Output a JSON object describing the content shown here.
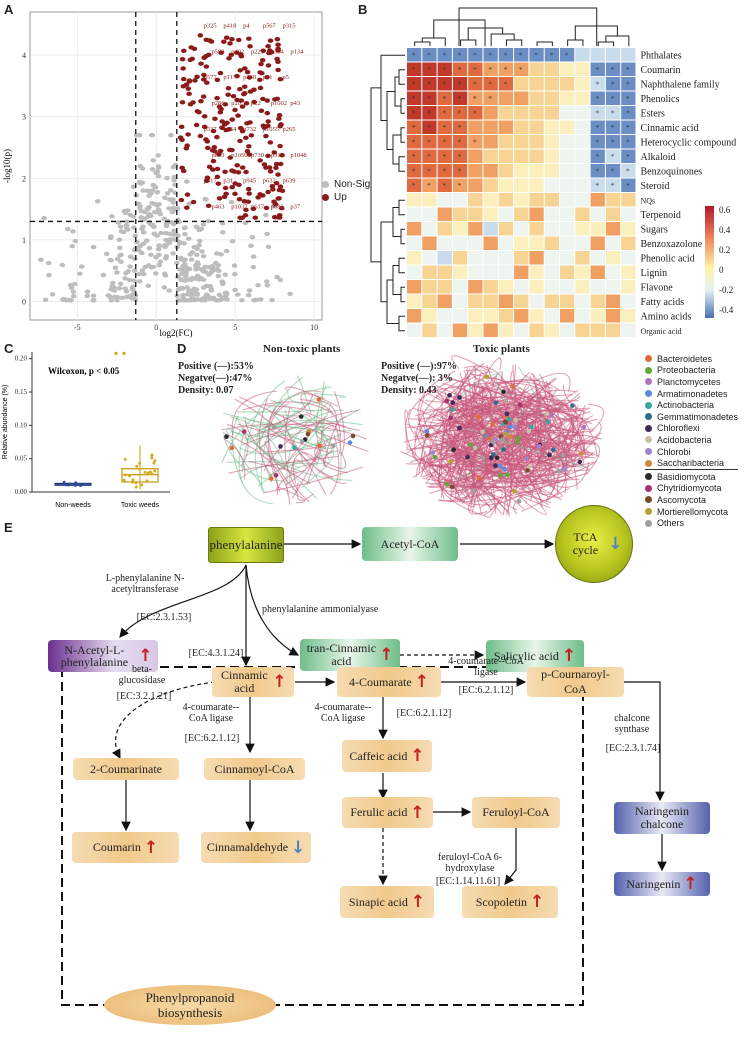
{
  "panels": {
    "A": "A",
    "B": "B",
    "C": "C",
    "D": "D",
    "E": "E"
  },
  "volcano": {
    "xlabel": "log2(FC)",
    "ylabel": "-log10(p)",
    "xticks": [
      "-5",
      "0",
      "5",
      "10"
    ],
    "yticks": [
      "0",
      "1",
      "2",
      "3",
      "4"
    ],
    "legend": [
      {
        "label": "Non-Sig",
        "color": "#bdbdbd"
      },
      {
        "label": "Up",
        "color": "#8b1a1a"
      }
    ],
    "point_labels": [
      "p325",
      "p418",
      "p4",
      "p567",
      "p315",
      "p598",
      "p402",
      "p221",
      "p334",
      "p134",
      "p577",
      "p117",
      "p348",
      "p61",
      "p5",
      "p286",
      "p20",
      "p22",
      "p1002",
      "p43",
      "p537",
      "p654",
      "p732",
      "p1055",
      "p265",
      "p833",
      "p1050",
      "p730",
      "p315",
      "p1048",
      "p317",
      "p31",
      "p945",
      "p632",
      "p639",
      "p463",
      "p1037",
      "p617",
      "p683",
      "p37"
    ],
    "thresholds": {
      "fc_low": -1.3,
      "fc_high": 1.3,
      "p": 1.3
    }
  },
  "heatmap": {
    "rows": [
      "Phthalates",
      "Coumarin",
      "Naphthalene family",
      "Phenolics",
      "Esters",
      "Cinnamic acid",
      "Heterocyclic compound",
      "Alkaloid",
      "Benzoquinones",
      "Steroid",
      "NQs",
      "Terpenoid",
      "Sugars",
      "Benzoxazolone",
      "Phenolic acid",
      "Lignin",
      "Flavone",
      "Fatty acids",
      "Amino acids",
      "Organic acid"
    ],
    "cols": [
      "ME3",
      "ME12",
      "ME5",
      "ME4",
      "ME9",
      "ME8",
      "ME7",
      "ME15",
      "ME6",
      "ME13",
      "ME10",
      "ME14",
      "ME2",
      "ME1",
      "ME11"
    ],
    "scale_ticks": [
      "0.6",
      "0.4",
      "0.2",
      "0",
      "-0.2",
      "-0.4"
    ]
  },
  "boxplot": {
    "annotation": "Wilcoxon, p < 0.05",
    "ylabel": "Relative abundance (%)",
    "yticks": [
      "0.00",
      "0.05",
      "0.10",
      "0.15",
      "0.20"
    ],
    "groups": [
      "Non-weeds",
      "Toxic weeds"
    ]
  },
  "networks": {
    "left": {
      "title": "Non-toxic plants",
      "positive": "Positive (—):53%",
      "negative": "Negatve(—):47%",
      "density": "Density: 0.07"
    },
    "right": {
      "title": "Toxic plants",
      "positive": "Positive (—):97%",
      "negative": "Negatve(—): 3%",
      "density": "Density: 0.43"
    },
    "legend": [
      {
        "label": "Bacteroidetes",
        "color": "#e06a3a"
      },
      {
        "label": "Proteobacteria",
        "color": "#5fa83b"
      },
      {
        "label": "Planctomycetes",
        "color": "#b46fc2"
      },
      {
        "label": "Armatimonadetes",
        "color": "#5b8bd9"
      },
      {
        "label": "Actinobacteria",
        "color": "#3aa6a0"
      },
      {
        "label": "Gemmatimonadetes",
        "color": "#2e6b8f"
      },
      {
        "label": "Chloroflexi",
        "color": "#3d2b5c"
      },
      {
        "label": "Acidobacteria",
        "color": "#c9c0a8"
      },
      {
        "label": "Chlorobi",
        "color": "#9a86d1"
      },
      {
        "label": "Saccharibacteria",
        "color": "#d2883b"
      },
      {
        "label": "Basidiomycota",
        "color": "#2b2b2b"
      },
      {
        "label": "Chytridiomycota",
        "color": "#a8326b"
      },
      {
        "label": "Ascomycota",
        "color": "#7a4a2a"
      },
      {
        "label": "Mortierellomycota",
        "color": "#b5a22a"
      },
      {
        "label": "Others",
        "color": "#9e9e9e"
      }
    ]
  },
  "pathway": {
    "phenylalanine": "phenylalanine",
    "acetyl": "Acetyl-CoA",
    "tca": "TCA cycle",
    "nacetyl": "N-Acetyl-L-phenylalanine",
    "trancinnamic": "tran-Cinnamic acid",
    "salicylic": "Salicylic acid",
    "cinnamic": "Cinnamic acid",
    "coumarate": "4-Coumarate",
    "pcoumaroyl": "p-Cournaroyl-CoA",
    "coumarinate": "2-Coumarinate",
    "cinnamoylcoa": "Cinnamoyl-CoA",
    "caffeic": "Caffeic acid",
    "ferulic": "Ferulic acid",
    "feruloylcoa": "Feruloyl-CoA",
    "coumarin": "Coumarin",
    "cinnamaldehyde": "Cinnamaldehyde",
    "sinapic": "Sinapic acid",
    "scopoletin": "Scopoletin",
    "naringeninchalcone": "Naringenin chalcone",
    "naringenin": "Naringenin",
    "phenylpropanoid": "Phenylpropanoid biosynthesis",
    "enz_nacetyl": "L-phenylalanine N-acetyltransferase",
    "ec_nacetyl": "[EC:2.3.1.53]",
    "enz_pal": "phenylalanine ammonialyase",
    "ec_pal": "[EC:4.3.1.24]",
    "enz_betagluc": "beta-glucosidase",
    "ec_betagluc": "[EC:3.2.1.21]",
    "enz_4cl_a": "4-coumarate--CoA ligase",
    "ec_4cl_a": "[EC:6.2.1.12]",
    "enz_4cl_b": "4-coumarate--CoA ligase",
    "ec_4cl_b": "[EC:6.2.1.12]",
    "enz_4cl_c": "4-coumarate--CoA ligase",
    "ec_4cl_c": "[EC:6.2.1.12]",
    "enz_chs": "chalcone synthase",
    "ec_chs": "[EC:2.3.1.74]",
    "enz_f6h": "feruloyl-CoA 6-hydroxylase",
    "ec_f6h": "[EC:1.14.11.61]",
    "up": "↑",
    "down": "↓"
  }
}
